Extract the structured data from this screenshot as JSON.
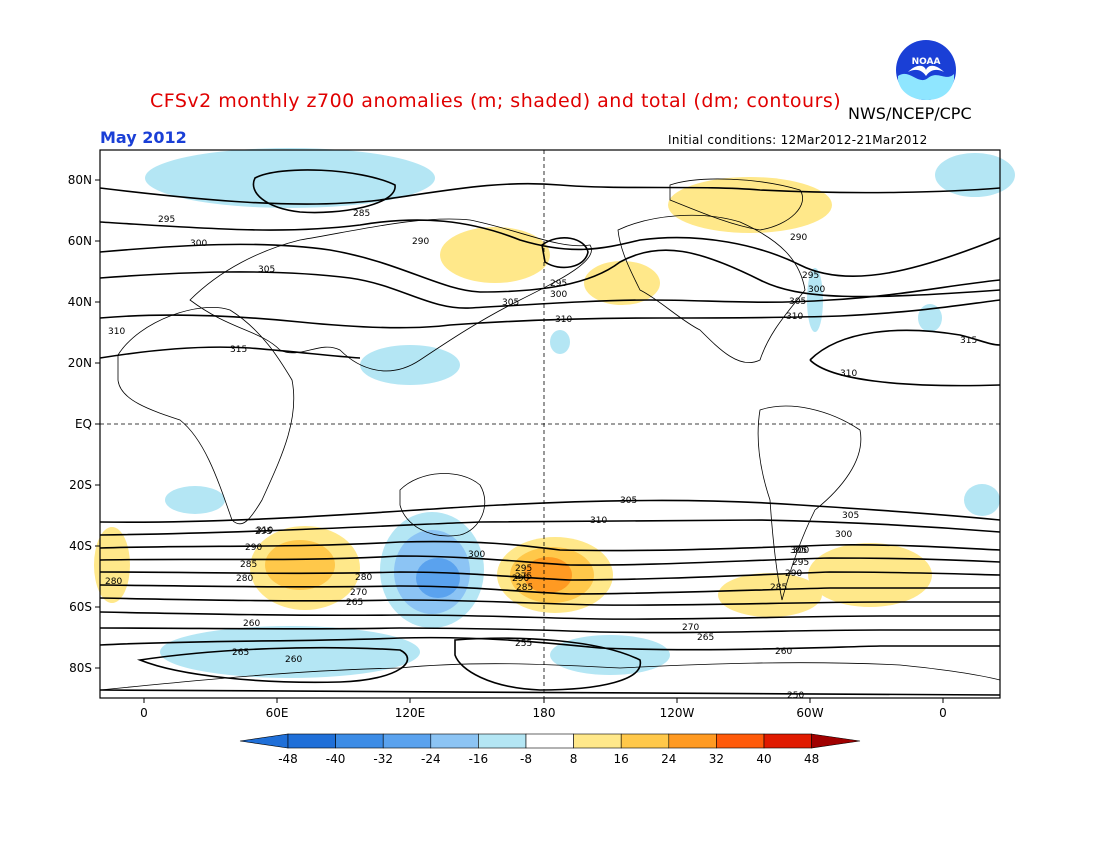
{
  "title": "CFSv2 monthly z700 anomalies (m; shaded) and total (dm; contours)",
  "org": "NWS/NCEP/CPC",
  "month": "May 2012",
  "initial_conditions": "Initial conditions: 12Mar2012-21Mar2012",
  "logo_text": "NOAA",
  "colors": {
    "title": "#e00000",
    "month": "#1a3fd6",
    "neg": [
      "#1f6fd8",
      "#3c8ce6",
      "#5aa2ee",
      "#8cc4f4",
      "#b4e6f4"
    ],
    "pos": [
      "#ffe88a",
      "#ffc84a",
      "#ff9a22",
      "#ff5a0a",
      "#e01a00",
      "#a00000"
    ]
  },
  "lat_labels": [
    "80N",
    "60N",
    "40N",
    "20N",
    "EQ",
    "20S",
    "40S",
    "60S",
    "80S"
  ],
  "lon_labels": [
    "0",
    "60E",
    "120E",
    "180",
    "120W",
    "60W",
    "0"
  ],
  "colorbar": {
    "levels": [
      "-48",
      "-40",
      "-32",
      "-24",
      "-16",
      "-8",
      "8",
      "16",
      "24",
      "32",
      "40",
      "48"
    ]
  },
  "contour_labels": [
    {
      "text": "285"
    },
    {
      "text": "295"
    },
    {
      "text": "300"
    },
    {
      "text": "290"
    },
    {
      "text": "305"
    },
    {
      "text": "310"
    },
    {
      "text": "315"
    },
    {
      "text": "295"
    },
    {
      "text": "300"
    },
    {
      "text": "305"
    },
    {
      "text": "310"
    },
    {
      "text": "290"
    },
    {
      "text": "295"
    },
    {
      "text": "300"
    },
    {
      "text": "305"
    },
    {
      "text": "310"
    },
    {
      "text": "315"
    },
    {
      "text": "310"
    },
    {
      "text": "305"
    },
    {
      "text": "310"
    },
    {
      "text": "305"
    },
    {
      "text": "300"
    },
    {
      "text": "295"
    },
    {
      "text": "290"
    },
    {
      "text": "285"
    },
    {
      "text": "280"
    },
    {
      "text": "275"
    },
    {
      "text": "270"
    },
    {
      "text": "265"
    },
    {
      "text": "260"
    },
    {
      "text": "255"
    },
    {
      "text": "260"
    },
    {
      "text": "265"
    },
    {
      "text": "250"
    },
    {
      "text": "300"
    },
    {
      "text": "295"
    },
    {
      "text": "290"
    },
    {
      "text": "285"
    },
    {
      "text": "280"
    },
    {
      "text": "270"
    },
    {
      "text": "265"
    },
    {
      "text": "260"
    },
    {
      "text": "310"
    },
    {
      "text": "305"
    },
    {
      "text": "300"
    },
    {
      "text": "295"
    },
    {
      "text": "290"
    },
    {
      "text": "285"
    },
    {
      "text": "280"
    }
  ]
}
